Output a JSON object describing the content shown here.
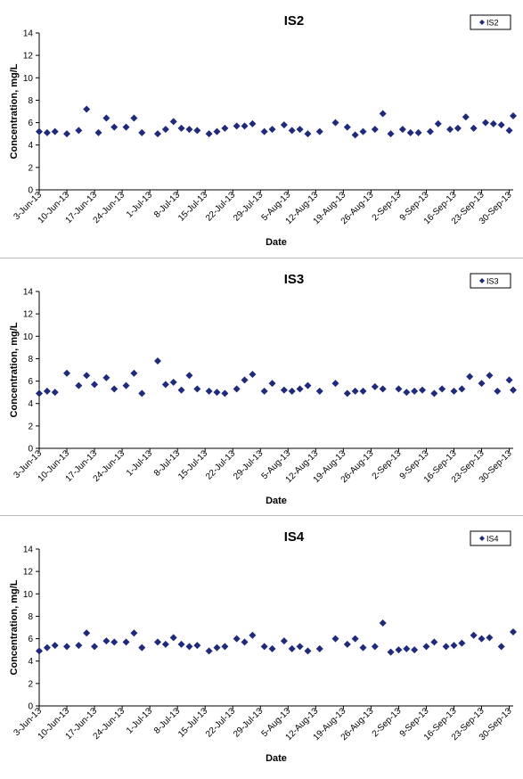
{
  "chart_data": [
    {
      "type": "scatter",
      "title": "IS2",
      "xlabel": "Date",
      "ylabel": "Concentration, mg/L",
      "ylim": [
        0,
        14
      ],
      "yticks": [
        0,
        2,
        4,
        6,
        8,
        10,
        12,
        14
      ],
      "xlim": [
        "2013-06-03",
        "2013-10-01"
      ],
      "x_tick_labels": [
        "3-Jun-13",
        "10-Jun-13",
        "17-Jun-13",
        "24-Jun-13",
        "1-Jul-13",
        "8-Jul-13",
        "15-Jul-13",
        "22-Jul-13",
        "29-Jul-13",
        "5-Aug-13",
        "12-Aug-13",
        "19-Aug-13",
        "26-Aug-13",
        "2-Sep-13",
        "9-Sep-13",
        "16-Sep-13",
        "23-Sep-13",
        "30-Sep-13"
      ],
      "x_tick_dates": [
        "2013-06-03",
        "2013-06-10",
        "2013-06-17",
        "2013-06-24",
        "2013-07-01",
        "2013-07-08",
        "2013-07-15",
        "2013-07-22",
        "2013-07-29",
        "2013-08-05",
        "2013-08-12",
        "2013-08-19",
        "2013-08-26",
        "2013-09-02",
        "2013-09-09",
        "2013-09-16",
        "2013-09-23",
        "2013-09-30"
      ],
      "legend_position": "top-right",
      "grid": false,
      "color": "#1f2a7a",
      "series": [
        {
          "name": "IS2",
          "points": [
            [
              "2013-06-03",
              5.2
            ],
            [
              "2013-06-05",
              5.1
            ],
            [
              "2013-06-07",
              5.2
            ],
            [
              "2013-06-10",
              5.0
            ],
            [
              "2013-06-13",
              5.3
            ],
            [
              "2013-06-15",
              7.2
            ],
            [
              "2013-06-18",
              5.1
            ],
            [
              "2013-06-20",
              6.4
            ],
            [
              "2013-06-22",
              5.6
            ],
            [
              "2013-06-25",
              5.6
            ],
            [
              "2013-06-27",
              6.4
            ],
            [
              "2013-06-29",
              5.1
            ],
            [
              "2013-07-03",
              5.0
            ],
            [
              "2013-07-05",
              5.4
            ],
            [
              "2013-07-07",
              6.1
            ],
            [
              "2013-07-09",
              5.5
            ],
            [
              "2013-07-11",
              5.4
            ],
            [
              "2013-07-13",
              5.3
            ],
            [
              "2013-07-16",
              5.0
            ],
            [
              "2013-07-18",
              5.2
            ],
            [
              "2013-07-20",
              5.5
            ],
            [
              "2013-07-23",
              5.7
            ],
            [
              "2013-07-25",
              5.7
            ],
            [
              "2013-07-27",
              5.9
            ],
            [
              "2013-07-30",
              5.2
            ],
            [
              "2013-08-01",
              5.4
            ],
            [
              "2013-08-04",
              5.8
            ],
            [
              "2013-08-06",
              5.3
            ],
            [
              "2013-08-08",
              5.4
            ],
            [
              "2013-08-10",
              5.0
            ],
            [
              "2013-08-13",
              5.2
            ],
            [
              "2013-08-17",
              6.0
            ],
            [
              "2013-08-20",
              5.6
            ],
            [
              "2013-08-22",
              4.9
            ],
            [
              "2013-08-24",
              5.2
            ],
            [
              "2013-08-27",
              5.4
            ],
            [
              "2013-08-29",
              6.8
            ],
            [
              "2013-08-31",
              5.0
            ],
            [
              "2013-09-03",
              5.4
            ],
            [
              "2013-09-05",
              5.1
            ],
            [
              "2013-09-07",
              5.1
            ],
            [
              "2013-09-10",
              5.2
            ],
            [
              "2013-09-12",
              5.9
            ],
            [
              "2013-09-15",
              5.4
            ],
            [
              "2013-09-17",
              5.5
            ],
            [
              "2013-09-19",
              6.5
            ],
            [
              "2013-09-21",
              5.5
            ],
            [
              "2013-09-24",
              6.0
            ],
            [
              "2013-09-26",
              5.9
            ],
            [
              "2013-09-28",
              5.8
            ],
            [
              "2013-09-30",
              5.3
            ],
            [
              "2013-10-01",
              6.6
            ]
          ]
        }
      ]
    },
    {
      "type": "scatter",
      "title": "IS3",
      "xlabel": "Date",
      "ylabel": "Concentration, mg/L",
      "ylim": [
        0,
        14
      ],
      "yticks": [
        0,
        2,
        4,
        6,
        8,
        10,
        12,
        14
      ],
      "xlim": [
        "2013-06-03",
        "2013-10-01"
      ],
      "x_tick_labels": [
        "3-Jun-13",
        "10-Jun-13",
        "17-Jun-13",
        "24-Jun-13",
        "1-Jul-13",
        "8-Jul-13",
        "15-Jul-13",
        "22-Jul-13",
        "29-Jul-13",
        "5-Aug-13",
        "12-Aug-13",
        "19-Aug-13",
        "26-Aug-13",
        "2-Sep-13",
        "9-Sep-13",
        "16-Sep-13",
        "23-Sep-13",
        "30-Sep-13"
      ],
      "x_tick_dates": [
        "2013-06-03",
        "2013-06-10",
        "2013-06-17",
        "2013-06-24",
        "2013-07-01",
        "2013-07-08",
        "2013-07-15",
        "2013-07-22",
        "2013-07-29",
        "2013-08-05",
        "2013-08-12",
        "2013-08-19",
        "2013-08-26",
        "2013-09-02",
        "2013-09-09",
        "2013-09-16",
        "2013-09-23",
        "2013-09-30"
      ],
      "legend_position": "top-right",
      "grid": false,
      "color": "#1f2a7a",
      "series": [
        {
          "name": "IS3",
          "points": [
            [
              "2013-06-03",
              4.9
            ],
            [
              "2013-06-05",
              5.1
            ],
            [
              "2013-06-07",
              5.0
            ],
            [
              "2013-06-10",
              6.7
            ],
            [
              "2013-06-13",
              5.6
            ],
            [
              "2013-06-15",
              6.5
            ],
            [
              "2013-06-17",
              5.7
            ],
            [
              "2013-06-20",
              6.3
            ],
            [
              "2013-06-22",
              5.3
            ],
            [
              "2013-06-25",
              5.6
            ],
            [
              "2013-06-27",
              6.7
            ],
            [
              "2013-06-29",
              4.9
            ],
            [
              "2013-07-03",
              7.8
            ],
            [
              "2013-07-05",
              5.7
            ],
            [
              "2013-07-07",
              5.9
            ],
            [
              "2013-07-09",
              5.2
            ],
            [
              "2013-07-11",
              6.5
            ],
            [
              "2013-07-13",
              5.3
            ],
            [
              "2013-07-16",
              5.1
            ],
            [
              "2013-07-18",
              5.0
            ],
            [
              "2013-07-20",
              4.9
            ],
            [
              "2013-07-23",
              5.3
            ],
            [
              "2013-07-25",
              6.1
            ],
            [
              "2013-07-27",
              6.6
            ],
            [
              "2013-07-30",
              5.1
            ],
            [
              "2013-08-01",
              5.8
            ],
            [
              "2013-08-04",
              5.2
            ],
            [
              "2013-08-06",
              5.1
            ],
            [
              "2013-08-08",
              5.3
            ],
            [
              "2013-08-10",
              5.6
            ],
            [
              "2013-08-13",
              5.1
            ],
            [
              "2013-08-17",
              5.8
            ],
            [
              "2013-08-20",
              4.9
            ],
            [
              "2013-08-22",
              5.1
            ],
            [
              "2013-08-24",
              5.1
            ],
            [
              "2013-08-27",
              5.5
            ],
            [
              "2013-08-29",
              5.3
            ],
            [
              "2013-09-02",
              5.3
            ],
            [
              "2013-09-04",
              5.0
            ],
            [
              "2013-09-06",
              5.1
            ],
            [
              "2013-09-08",
              5.2
            ],
            [
              "2013-09-11",
              4.9
            ],
            [
              "2013-09-13",
              5.3
            ],
            [
              "2013-09-16",
              5.1
            ],
            [
              "2013-09-18",
              5.3
            ],
            [
              "2013-09-20",
              6.4
            ],
            [
              "2013-09-23",
              5.8
            ],
            [
              "2013-09-25",
              6.5
            ],
            [
              "2013-09-27",
              5.1
            ],
            [
              "2013-09-30",
              6.1
            ],
            [
              "2013-10-01",
              5.2
            ]
          ]
        }
      ]
    },
    {
      "type": "scatter",
      "title": "IS4",
      "xlabel": "Date",
      "ylabel": "Concentration, mg/L",
      "ylim": [
        0,
        14
      ],
      "yticks": [
        0,
        2,
        4,
        6,
        8,
        10,
        12,
        14
      ],
      "xlim": [
        "2013-06-03",
        "2013-10-01"
      ],
      "x_tick_labels": [
        "3-Jun-13",
        "10-Jun-13",
        "17-Jun-13",
        "24-Jun-13",
        "1-Jul-13",
        "8-Jul-13",
        "15-Jul-13",
        "22-Jul-13",
        "29-Jul-13",
        "5-Aug-13",
        "12-Aug-13",
        "19-Aug-13",
        "26-Aug-13",
        "2-Sep-13",
        "9-Sep-13",
        "16-Sep-13",
        "23-Sep-13",
        "30-Sep-13"
      ],
      "x_tick_dates": [
        "2013-06-03",
        "2013-06-10",
        "2013-06-17",
        "2013-06-24",
        "2013-07-01",
        "2013-07-08",
        "2013-07-15",
        "2013-07-22",
        "2013-07-29",
        "2013-08-05",
        "2013-08-12",
        "2013-08-19",
        "2013-08-26",
        "2013-09-02",
        "2013-09-09",
        "2013-09-16",
        "2013-09-23",
        "2013-09-30"
      ],
      "legend_position": "top-right",
      "grid": false,
      "color": "#1f2a7a",
      "series": [
        {
          "name": "IS4",
          "points": [
            [
              "2013-06-03",
              4.9
            ],
            [
              "2013-06-05",
              5.2
            ],
            [
              "2013-06-07",
              5.4
            ],
            [
              "2013-06-10",
              5.3
            ],
            [
              "2013-06-13",
              5.4
            ],
            [
              "2013-06-15",
              6.5
            ],
            [
              "2013-06-17",
              5.3
            ],
            [
              "2013-06-20",
              5.8
            ],
            [
              "2013-06-22",
              5.7
            ],
            [
              "2013-06-25",
              5.7
            ],
            [
              "2013-06-27",
              6.5
            ],
            [
              "2013-06-29",
              5.2
            ],
            [
              "2013-07-03",
              5.7
            ],
            [
              "2013-07-05",
              5.5
            ],
            [
              "2013-07-07",
              6.1
            ],
            [
              "2013-07-09",
              5.5
            ],
            [
              "2013-07-11",
              5.3
            ],
            [
              "2013-07-13",
              5.4
            ],
            [
              "2013-07-16",
              4.9
            ],
            [
              "2013-07-18",
              5.2
            ],
            [
              "2013-07-20",
              5.3
            ],
            [
              "2013-07-23",
              6.0
            ],
            [
              "2013-07-25",
              5.7
            ],
            [
              "2013-07-27",
              6.3
            ],
            [
              "2013-07-30",
              5.3
            ],
            [
              "2013-08-01",
              5.1
            ],
            [
              "2013-08-04",
              5.8
            ],
            [
              "2013-08-06",
              5.1
            ],
            [
              "2013-08-08",
              5.3
            ],
            [
              "2013-08-10",
              4.9
            ],
            [
              "2013-08-13",
              5.1
            ],
            [
              "2013-08-17",
              6.0
            ],
            [
              "2013-08-20",
              5.5
            ],
            [
              "2013-08-22",
              6.0
            ],
            [
              "2013-08-24",
              5.2
            ],
            [
              "2013-08-27",
              5.3
            ],
            [
              "2013-08-29",
              7.4
            ],
            [
              "2013-08-31",
              4.8
            ],
            [
              "2013-09-02",
              5.0
            ],
            [
              "2013-09-04",
              5.1
            ],
            [
              "2013-09-06",
              5.0
            ],
            [
              "2013-09-09",
              5.3
            ],
            [
              "2013-09-11",
              5.7
            ],
            [
              "2013-09-14",
              5.3
            ],
            [
              "2013-09-16",
              5.4
            ],
            [
              "2013-09-18",
              5.6
            ],
            [
              "2013-09-21",
              6.3
            ],
            [
              "2013-09-23",
              6.0
            ],
            [
              "2013-09-25",
              6.1
            ],
            [
              "2013-09-28",
              5.3
            ],
            [
              "2013-10-01",
              6.6
            ]
          ]
        }
      ]
    }
  ]
}
